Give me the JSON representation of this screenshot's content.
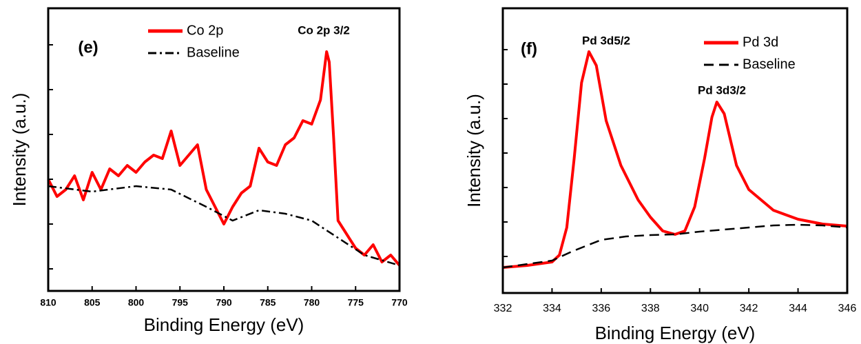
{
  "chart_data": [
    {
      "type": "line",
      "panel_label": "(e)",
      "annotations": [
        "Co 2p 3/2"
      ],
      "x_label": "Binding Energy (eV)",
      "y_label": "Intensity (a.u.)",
      "xlim": [
        810,
        770
      ],
      "xticks": [
        810,
        805,
        800,
        795,
        790,
        785,
        780,
        775,
        770
      ],
      "ylim": [
        0,
        410
      ],
      "yticks": [
        32,
        97,
        162,
        227,
        292,
        357
      ],
      "legend": "upper left",
      "series": [
        {
          "name": "Co 2p",
          "color": "#ff0000",
          "dash": "solid",
          "x": [
            810,
            809,
            808,
            807,
            806,
            805,
            804,
            803,
            802,
            801,
            800,
            799,
            798,
            797,
            796,
            795,
            794,
            793,
            792,
            791,
            790,
            789,
            788,
            787,
            786,
            785,
            784,
            783,
            782,
            781,
            780,
            779,
            778.3,
            778,
            777.5,
            777,
            776,
            775,
            774,
            773,
            772,
            771,
            770
          ],
          "values": [
            162,
            137,
            147,
            167,
            132,
            172,
            147,
            177,
            167,
            182,
            172,
            187,
            197,
            192,
            232,
            182,
            197,
            212,
            147,
            122,
            97,
            122,
            142,
            152,
            207,
            187,
            182,
            212,
            222,
            247,
            242,
            277,
            347,
            332,
            222,
            102,
            82,
            62,
            52,
            67,
            42,
            52,
            37
          ]
        },
        {
          "name": "Baseline",
          "color": "#000000",
          "dash": "dashdot",
          "x": [
            810,
            805,
            800,
            796,
            792,
            789,
            786,
            783,
            780,
            777,
            774,
            770
          ],
          "values": [
            152,
            144,
            152,
            147,
            122,
            102,
            117,
            112,
            102,
            77,
            52,
            37
          ]
        }
      ]
    },
    {
      "type": "line",
      "panel_label": "(f)",
      "annotations": [
        "Pd 3d5/2",
        "Pd 3d3/2"
      ],
      "x_label": "Binding Energy (eV)",
      "y_label": "Intensity (a.u.)",
      "xlim": [
        332,
        346
      ],
      "xticks": [
        332,
        334,
        336,
        338,
        340,
        342,
        344,
        346
      ],
      "ylim": [
        0,
        413
      ],
      "yticks": [
        53,
        103,
        153,
        203,
        253,
        303,
        353
      ],
      "legend": "upper right",
      "series": [
        {
          "name": "Pd 3d",
          "color": "#ff0000",
          "dash": "solid",
          "x": [
            332,
            333,
            334,
            334.3,
            334.6,
            334.9,
            335.2,
            335.5,
            335.8,
            336.2,
            336.8,
            337.5,
            338,
            338.5,
            339,
            339.4,
            339.8,
            340.2,
            340.5,
            340.7,
            341,
            341.5,
            342,
            342.5,
            343,
            344,
            345,
            346
          ],
          "values": [
            37,
            40,
            45,
            55,
            95,
            195,
            305,
            350,
            330,
            250,
            185,
            135,
            110,
            90,
            85,
            90,
            125,
            195,
            255,
            277,
            260,
            185,
            150,
            135,
            120,
            107,
            100,
            97
          ]
        },
        {
          "name": "Baseline",
          "color": "#000000",
          "dash": "dashed",
          "x": [
            332,
            334,
            334.8,
            335.5,
            336,
            337,
            338,
            339,
            340,
            341,
            342,
            343,
            344,
            345,
            346
          ],
          "values": [
            37,
            47,
            60,
            70,
            77,
            82,
            84,
            85,
            89,
            92,
            95,
            98,
            99,
            98,
            95
          ]
        }
      ]
    }
  ]
}
